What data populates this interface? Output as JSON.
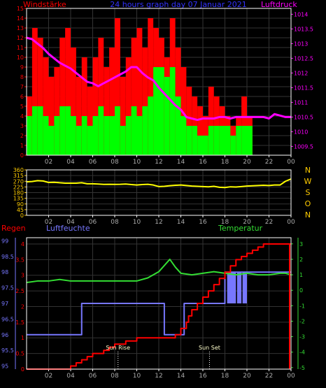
{
  "header": {
    "left_title": "Windstärke",
    "center_title": "24 hours graph day  07 Januar 2021",
    "right_title": "Luftdruck"
  },
  "panel3_titles": {
    "rain": "Regen",
    "humidity": "Luftfeuchte",
    "temperature": "Temperatur"
  },
  "annotations": {
    "sunrise": "Sun Rise",
    "sunset": "Sun Set"
  },
  "colors": {
    "wind_gust": "#ff0000",
    "wind_avg": "#00ff00",
    "pressure": "#ff00ff",
    "direction": "#ffff00",
    "rain": "#ff0000",
    "humidity": "#7777ff",
    "temperature": "#33dd33",
    "axis_left1": "#ff0000",
    "axis_right1": "#ff00ff",
    "axis_dir": "#ffcc00",
    "axis_rain": "#ff0000",
    "axis_hum": "#7777ff",
    "axis_temp": "#33dd33",
    "grid": "#333333",
    "frame": "#ffffff"
  },
  "chart_data": [
    {
      "type": "bar",
      "name": "wind",
      "x_ticks": [
        "02",
        "04",
        "06",
        "08",
        "10",
        "12",
        "14",
        "16",
        "18",
        "20",
        "22",
        "00"
      ],
      "y_left_ticks": [
        "0",
        "1",
        "2",
        "3",
        "4",
        "5",
        "6",
        "7",
        "8",
        "9",
        "10",
        "11",
        "12",
        "13",
        "14",
        "15"
      ],
      "y_right_ticks": [
        "1009.5",
        "1010",
        "1010.5",
        "1011",
        "1011.5",
        "1012",
        "1012.5",
        "1013",
        "1013.5",
        "1014"
      ],
      "ylim_left": [
        0,
        15
      ],
      "ylim_right": [
        1009.2,
        1014.2
      ],
      "xlim": [
        0,
        24
      ],
      "series": [
        {
          "name": "Windstärke",
          "key": "gust"
        },
        {
          "name": "Luftdruck",
          "key": "pressure"
        }
      ],
      "pressure_hours": [
        0,
        0.5,
        1,
        1.5,
        2,
        2.5,
        3,
        3.5,
        4,
        4.5,
        5,
        5.5,
        6,
        6.5,
        7,
        7.5,
        8,
        8.5,
        9,
        9.5,
        10,
        10.5,
        11,
        11.5,
        12,
        12.5,
        13,
        13.5,
        14,
        14.5,
        15,
        15.5,
        16,
        16.5,
        17,
        17.5,
        18,
        18.5,
        19,
        19.5,
        20,
        20.5,
        21,
        21.5,
        22,
        22.5,
        23,
        23.5,
        24
      ],
      "pressure_values": [
        1013.2,
        1013.15,
        1013.0,
        1012.85,
        1012.65,
        1012.5,
        1012.35,
        1012.25,
        1012.15,
        1012.0,
        1011.85,
        1011.7,
        1011.65,
        1011.55,
        1011.65,
        1011.75,
        1011.85,
        1011.95,
        1012.05,
        1012.2,
        1012.2,
        1012.0,
        1011.85,
        1011.75,
        1011.5,
        1011.3,
        1011.1,
        1010.9,
        1010.75,
        1010.5,
        1010.45,
        1010.4,
        1010.45,
        1010.45,
        1010.45,
        1010.5,
        1010.5,
        1010.45,
        1010.5,
        1010.5,
        1010.5,
        1010.5,
        1010.5,
        1010.5,
        1010.45,
        1010.6,
        1010.55,
        1010.5,
        1010.5
      ],
      "gust_hours": [
        0,
        0.5,
        1,
        1.5,
        2,
        2.5,
        3,
        3.5,
        4,
        4.5,
        5,
        5.5,
        6,
        6.5,
        7,
        7.5,
        8,
        8.5,
        9,
        9.5,
        10,
        10.5,
        11,
        11.5,
        12,
        12.5,
        13,
        13.5,
        14,
        14.5,
        15,
        15.5,
        16,
        16.5,
        17,
        17.5,
        18,
        18.5,
        19,
        19.5,
        20,
        20.5,
        21,
        21.5,
        22,
        22.5,
        23,
        23.5
      ],
      "gust_values": [
        6,
        13,
        12,
        10,
        8,
        9,
        12,
        13,
        11,
        8,
        10,
        7,
        10,
        12,
        9,
        11,
        14,
        8,
        10,
        12,
        13,
        11,
        14,
        13,
        12,
        10,
        14,
        11,
        9,
        7,
        6,
        5,
        4,
        7,
        6,
        5,
        4,
        3,
        4,
        6,
        4,
        0,
        0,
        0,
        0,
        0,
        0,
        0
      ],
      "avg_values": [
        4,
        5,
        5,
        4,
        3,
        4,
        5,
        5,
        4,
        3,
        4,
        3,
        4,
        5,
        4,
        4,
        5,
        3,
        4,
        5,
        4,
        5,
        6,
        9,
        9,
        8,
        9,
        6,
        4,
        3,
        3,
        2,
        2,
        3,
        3,
        3,
        3,
        2,
        3,
        3,
        3,
        0,
        0,
        0,
        0,
        0,
        0,
        0
      ]
    },
    {
      "type": "line",
      "name": "direction",
      "x_ticks": [
        "02",
        "04",
        "06",
        "08",
        "10",
        "12",
        "14",
        "16",
        "18",
        "20",
        "22",
        "00"
      ],
      "y_left_ticks": [
        "0",
        "45",
        "90",
        "135",
        "180",
        "225",
        "270",
        "315",
        "360"
      ],
      "ylim": [
        0,
        360
      ],
      "xlim": [
        0,
        24
      ],
      "compass_labels": [
        "N",
        "W",
        "S",
        "O",
        "N"
      ],
      "hours": [
        0,
        0.5,
        1,
        1.5,
        2,
        2.5,
        3,
        3.5,
        4,
        4.5,
        5,
        5.5,
        6,
        6.5,
        7,
        7.5,
        8,
        8.5,
        9,
        9.5,
        10,
        10.5,
        11,
        11.5,
        12,
        12.5,
        13,
        13.5,
        14,
        14.5,
        15,
        15.5,
        16,
        16.5,
        17,
        17.5,
        18,
        18.5,
        19,
        19.5,
        20,
        20.5,
        21,
        21.5,
        22,
        22.5,
        23,
        23.5,
        24
      ],
      "values": [
        265,
        268,
        275,
        272,
        260,
        262,
        258,
        255,
        255,
        255,
        258,
        250,
        250,
        248,
        245,
        246,
        245,
        246,
        248,
        244,
        240,
        244,
        246,
        240,
        228,
        230,
        235,
        238,
        240,
        236,
        232,
        230,
        228,
        226,
        230,
        222,
        220,
        226,
        224,
        228,
        232,
        234,
        236,
        238,
        236,
        240,
        240,
        270,
        288
      ]
    },
    {
      "type": "line",
      "name": "rain_humidity_temperature",
      "x_ticks": [
        "02",
        "04",
        "06",
        "08",
        "10",
        "12",
        "14",
        "16",
        "18",
        "20",
        "22",
        "00"
      ],
      "rain_ticks": [
        "0",
        "0.5",
        "1",
        "1.5",
        "2",
        "2.5",
        "3",
        "3.5",
        "4"
      ],
      "rain_ylim": [
        0,
        4.2
      ],
      "humidity_ticks": [
        "95",
        "95.5",
        "96",
        "96.5",
        "97",
        "97.5",
        "98",
        "98.5",
        "99"
      ],
      "humidity_ylim": [
        94.9,
        99.1
      ],
      "temperature_ticks": [
        "-5",
        "-4",
        "-3",
        "-2",
        "-1",
        "0",
        "1",
        "2",
        "3"
      ],
      "temperature_ylim": [
        -5.1,
        3.4
      ],
      "xlim": [
        0,
        24
      ],
      "series": [
        {
          "name": "Regen",
          "hours": [
            0,
            4,
            4.5,
            5,
            5.5,
            6,
            7,
            7.5,
            8,
            8.5,
            9,
            9.5,
            10,
            10.5,
            11,
            11.5,
            12,
            12.5,
            13,
            13.5,
            14,
            14.5,
            14.7,
            15,
            15.5,
            16,
            16.5,
            17,
            17.5,
            18,
            18.5,
            19,
            19.5,
            20,
            20.5,
            21,
            21.5,
            22,
            22.5,
            23,
            23.5,
            24
          ],
          "values": [
            0,
            0.1,
            0.2,
            0.3,
            0.4,
            0.5,
            0.6,
            0.7,
            0.8,
            0.8,
            0.9,
            0.9,
            1.0,
            1.0,
            1.0,
            1.0,
            1.0,
            1.0,
            1.0,
            1.1,
            1.3,
            1.5,
            1.7,
            1.9,
            2.1,
            2.3,
            2.5,
            2.7,
            2.9,
            3.1,
            3.3,
            3.5,
            3.6,
            3.7,
            3.8,
            3.9,
            4.0,
            4.0,
            4.0,
            4.0,
            4.0,
            4.0
          ]
        },
        {
          "name": "Luftfeuchte",
          "hours": [
            0,
            5,
            5,
            12.5,
            12.5,
            14.3,
            14.3,
            18,
            18,
            19,
            19,
            20,
            20,
            24
          ],
          "values": [
            96,
            96,
            97,
            97,
            96,
            96,
            97,
            97,
            98,
            98,
            98,
            98,
            98,
            98
          ]
        },
        {
          "name": "Temperatur",
          "hours": [
            0,
            1,
            2,
            3,
            4,
            5,
            6,
            7,
            8,
            9,
            10,
            11,
            12,
            12.5,
            13,
            13.5,
            14,
            15,
            16,
            17,
            18,
            19,
            20,
            21,
            22,
            23,
            23.5,
            24
          ],
          "values": [
            0.5,
            0.6,
            0.6,
            0.7,
            0.6,
            0.6,
            0.6,
            0.6,
            0.6,
            0.6,
            0.6,
            0.8,
            1.2,
            1.6,
            2.0,
            1.5,
            1.1,
            1.0,
            1.1,
            1.2,
            1.1,
            1.0,
            1.1,
            1.0,
            1.0,
            1.1,
            1.1,
            1.0
          ]
        }
      ],
      "sunrise_hour": 8.3,
      "sunset_hour": 16.6
    }
  ]
}
